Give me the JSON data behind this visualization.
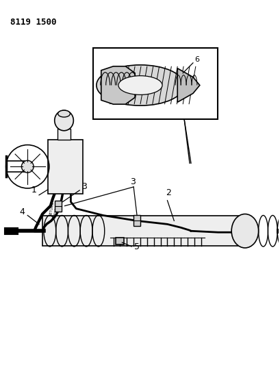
{
  "title_code": "8119 1500",
  "background_color": "#ffffff",
  "line_color": "#000000",
  "figsize": [
    4.1,
    5.33
  ],
  "dpi": 100
}
